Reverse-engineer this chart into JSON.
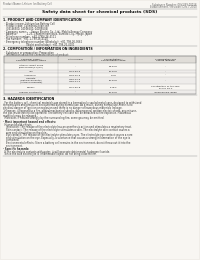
{
  "bg_color": "#f0ede8",
  "page_color": "#f8f6f2",
  "header_left": "Product Name: Lithium Ion Battery Cell",
  "header_right_line1": "Substance Number: 08V-049-00018",
  "header_right_line2": "Establishment / Revision: Dec.7.2010",
  "title": "Safety data sheet for chemical products (SDS)",
  "section1_title": "1. PRODUCT AND COMPANY IDENTIFICATION",
  "section1_lines": [
    "  · Product name: Lithium Ion Battery Cell",
    "  · Product code: Cylindrical-type cell",
    "    (04166500, 04166500, 04166504)",
    "  · Company name:      Sanyo Electric Co., Ltd., Mobile Energy Company",
    "  · Address:             2-23-1 Kamiminamikata, Sumoto City, Hyogo, Japan",
    "  · Telephone number:  +81-(799)-26-4111",
    "  · Fax number:  +81-1-799-26-4120",
    "  · Emergency telephone number (Weekday): +81-799-26-3662",
    "                               (Night and holiday): +81-799-26-4101"
  ],
  "section2_title": "2. COMPOSITION / INFORMATION ON INGREDIENTS",
  "section2_sub": "  · Substance or preparation: Preparation",
  "section2_sub2": "  · Information about the chemical nature of product:",
  "table_headers": [
    "Chemical name /\nCommon chemical name",
    "CAS number",
    "Concentration /\nConcentration range",
    "Classification and\nhazard labeling"
  ],
  "table_rows": [
    [
      "Lithium cobalt oxide\n(LiMnxCoxNi(1-x)O2)",
      "-",
      "30-60%",
      "-"
    ],
    [
      "Iron",
      "7439-89-6",
      "10-20%",
      "-"
    ],
    [
      "Aluminium",
      "7429-90-5",
      "2-5%",
      "-"
    ],
    [
      "Graphite\n(Natural graphite)\n(Artificial graphite)",
      "7782-42-5\n7782-44-2",
      "10-25%",
      "-"
    ],
    [
      "Copper",
      "7440-50-8",
      "5-15%",
      "Sensitization of the skin\ngroup No.2"
    ],
    [
      "Organic electrolyte",
      "-",
      "10-25%",
      "Inflammable liquid"
    ]
  ],
  "section3_title": "3. HAZARDS IDENTIFICATION",
  "section3_para": [
    "  For the battery cell, chemical materials are stored in a hermetically sealed metal case, designed to withstand",
    "temperatures and pressures encountered during normal use. As a result, during normal use, there is no",
    "physical danger of ignition or explosion and there is no danger of hazardous materials leakage.",
    "  However, if exposed to a fire, added mechanical shocks, decomposed, written electric shorts, any misuse,",
    "the gas inside can not be operated. The battery cell case will be breached at fire explosive. Hazardous",
    "materials may be released.",
    "  Moreover, if heated strongly by the surrounding fire, some gas may be emitted."
  ],
  "section3_bullet1": "· Most important hazard and effects:",
  "section3_human": "  Human health effects:",
  "section3_human_lines": [
    "    Inhalation: The release of the electrolyte has an anesthesia action and stimulates a respiratory tract.",
    "    Skin contact: The release of the electrolyte stimulates a skin. The electrolyte skin contact causes a",
    "    sore and stimulation on the skin.",
    "    Eye contact: The release of the electrolyte stimulates eyes. The electrolyte eye contact causes a sore",
    "    and stimulation on the eye. Especially, a substance that causes a strong inflammation of the eye is",
    "    contained.",
    "    Environmental effects: Since a battery cell remains in the environment, do not throw out it into the",
    "    environment."
  ],
  "section3_specific": "· Specific hazards:",
  "section3_specific_lines": [
    "  If the electrolyte contacts with water, it will generate detrimental hydrogen fluoride.",
    "  Since the said electrolyte is inflammable liquid, do not bring close to fire."
  ]
}
